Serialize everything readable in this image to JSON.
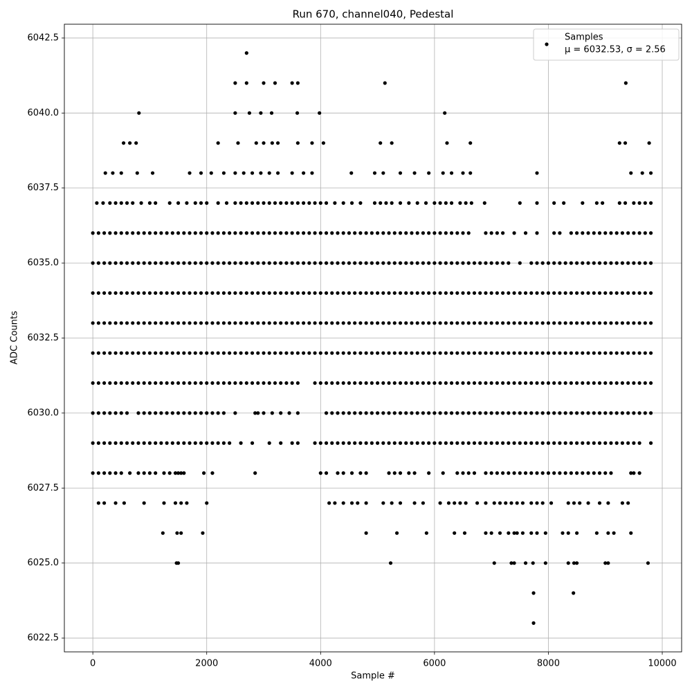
{
  "chart_data": {
    "type": "scatter",
    "title": "Run 670, channel040, Pedestal",
    "x_label": "Sample #",
    "y_label": "ADC Counts",
    "color": "#000000",
    "grid": true,
    "legend_position": "upper right",
    "legend": {
      "name": "Samples",
      "label": "μ = 6032.53, σ = 2.56"
    },
    "xlim": [
      -500,
      10340
    ],
    "ylim": [
      6022.04,
      6042.96
    ],
    "xticks": [
      0,
      2000,
      4000,
      6000,
      8000,
      10000
    ],
    "yticks": [
      6022.5,
      {
        "value": 6025,
        "label": "6025.0"
      },
      6027.5,
      {
        "value": 6030,
        "label": "6030.0"
      },
      6032.5,
      {
        "value": 6035,
        "label": "6035.0"
      },
      6037.5,
      {
        "value": 6040,
        "label": "6040.0"
      },
      6042.5
    ],
    "levels": [
      {
        "value": 6042,
        "x": [
          2700
        ]
      },
      {
        "value": 6041,
        "x": [
          2500,
          2700,
          3000,
          3200,
          3500,
          3600,
          5130,
          9360
        ]
      },
      {
        "value": 6040,
        "x": [
          810,
          2500,
          2750,
          2950,
          3140,
          3590,
          3980,
          6180
        ]
      },
      {
        "value": 6039,
        "x": [
          540,
          650,
          760,
          2200,
          2550,
          2870,
          3000,
          3150,
          3250,
          3600,
          3850,
          4050,
          5050,
          5250,
          6220,
          6630,
          9250,
          9350,
          9770
        ]
      },
      {
        "value": 6038,
        "x": [
          220,
          350,
          500,
          780,
          1050,
          1700,
          1900,
          2080,
          2300,
          2500,
          2650,
          2800,
          2950,
          3100,
          3250,
          3500,
          3700,
          3850,
          4540,
          4950,
          5100,
          5400,
          5650,
          5900,
          6150,
          6300,
          6500,
          6630,
          7800,
          9450,
          9650,
          9800
        ]
      },
      {
        "value": 6037,
        "x": [
          70,
          180,
          300,
          400,
          500,
          600,
          700,
          850,
          1000,
          1100,
          1350,
          1500,
          1650,
          1800,
          1900,
          2000,
          2200,
          2350,
          2500,
          2600,
          2700,
          2800,
          2900,
          3000,
          3100,
          3200,
          3300,
          3400,
          3500,
          3600,
          3700,
          3800,
          3900,
          4000,
          4100,
          4250,
          4400,
          4550,
          4700,
          4950,
          5050,
          5150,
          5250,
          5400,
          5550,
          5700,
          5850,
          6000,
          6100,
          6200,
          6300,
          6450,
          6550,
          6650,
          6880,
          7500,
          7800,
          8100,
          8270,
          8600,
          8850,
          8950,
          9250,
          9350,
          9500,
          9600,
          9700,
          9800
        ]
      },
      {
        "value": 6036,
        "x": [
          0,
          100,
          200,
          300,
          400,
          500,
          600,
          700,
          800,
          900,
          1000,
          1100,
          1200,
          1300,
          1400,
          1500,
          1600,
          1700,
          1800,
          1900,
          2000,
          2100,
          2200,
          2300,
          2400,
          2500,
          2600,
          2700,
          2800,
          2900,
          3000,
          3100,
          3200,
          3300,
          3400,
          3500,
          3600,
          3700,
          3800,
          3900,
          4000,
          4100,
          4200,
          4300,
          4400,
          4500,
          4600,
          4700,
          4800,
          4900,
          5000,
          5100,
          5200,
          5300,
          5400,
          5500,
          5600,
          5700,
          5800,
          5900,
          6000,
          6100,
          6200,
          6300,
          6400,
          6500,
          6600,
          6900,
          7000,
          7100,
          7200,
          7400,
          7600,
          7800,
          8100,
          8200,
          8400,
          8500,
          8600,
          8700,
          8800,
          8900,
          9000,
          9100,
          9200,
          9300,
          9400,
          9500,
          9600,
          9700,
          9800
        ]
      },
      {
        "value": 6035,
        "x": [
          0,
          100,
          200,
          300,
          400,
          500,
          600,
          700,
          800,
          900,
          1000,
          1100,
          1200,
          1300,
          1400,
          1500,
          1600,
          1700,
          1800,
          1900,
          2000,
          2100,
          2200,
          2300,
          2400,
          2500,
          2600,
          2700,
          2800,
          2900,
          3000,
          3100,
          3200,
          3300,
          3400,
          3500,
          3600,
          3700,
          3800,
          3900,
          4000,
          4100,
          4200,
          4300,
          4400,
          4500,
          4600,
          4700,
          4800,
          4900,
          5000,
          5100,
          5200,
          5300,
          5400,
          5500,
          5600,
          5700,
          5800,
          5900,
          6000,
          6100,
          6200,
          6300,
          6400,
          6500,
          6600,
          6700,
          6800,
          6900,
          7000,
          7100,
          7200,
          7300,
          7500,
          7700,
          7800,
          7900,
          8000,
          8100,
          8200,
          8300,
          8400,
          8500,
          8600,
          8700,
          8800,
          8900,
          9000,
          9100,
          9200,
          9300,
          9400,
          9500,
          9600,
          9700,
          9800
        ]
      },
      {
        "value": 6034,
        "x": [
          0,
          100,
          200,
          300,
          400,
          500,
          600,
          700,
          800,
          900,
          1000,
          1100,
          1200,
          1300,
          1400,
          1500,
          1600,
          1700,
          1800,
          1900,
          2000,
          2100,
          2200,
          2300,
          2400,
          2500,
          2600,
          2700,
          2800,
          2900,
          3000,
          3100,
          3200,
          3300,
          3400,
          3500,
          3600,
          3700,
          3800,
          3900,
          4000,
          4100,
          4200,
          4300,
          4400,
          4500,
          4600,
          4700,
          4800,
          4900,
          5000,
          5100,
          5200,
          5300,
          5400,
          5500,
          5600,
          5700,
          5800,
          5900,
          6000,
          6100,
          6200,
          6300,
          6400,
          6500,
          6600,
          6700,
          6800,
          6900,
          7000,
          7100,
          7200,
          7300,
          7400,
          7500,
          7600,
          7700,
          7800,
          7900,
          8000,
          8100,
          8200,
          8300,
          8400,
          8500,
          8600,
          8700,
          8800,
          8900,
          9000,
          9100,
          9200,
          9300,
          9400,
          9500,
          9600,
          9700,
          9800
        ]
      },
      {
        "value": 6033,
        "x": [
          0,
          100,
          200,
          300,
          400,
          500,
          600,
          700,
          800,
          900,
          1000,
          1100,
          1200,
          1300,
          1400,
          1500,
          1600,
          1700,
          1800,
          1900,
          2000,
          2100,
          2200,
          2300,
          2400,
          2500,
          2600,
          2700,
          2800,
          2900,
          3000,
          3100,
          3200,
          3300,
          3400,
          3500,
          3600,
          3700,
          3800,
          3900,
          4000,
          4100,
          4200,
          4300,
          4400,
          4500,
          4600,
          4700,
          4800,
          4900,
          5000,
          5100,
          5200,
          5300,
          5400,
          5500,
          5600,
          5700,
          5800,
          5900,
          6000,
          6100,
          6200,
          6300,
          6400,
          6500,
          6600,
          6700,
          6800,
          6900,
          7000,
          7100,
          7200,
          7300,
          7400,
          7500,
          7600,
          7700,
          7800,
          7900,
          8000,
          8100,
          8200,
          8300,
          8400,
          8500,
          8600,
          8700,
          8800,
          8900,
          9000,
          9100,
          9200,
          9300,
          9400,
          9500,
          9600,
          9700,
          9800
        ]
      },
      {
        "value": 6032,
        "x": [
          0,
          100,
          200,
          300,
          400,
          500,
          600,
          700,
          800,
          900,
          1000,
          1100,
          1200,
          1300,
          1400,
          1500,
          1600,
          1700,
          1800,
          1900,
          2000,
          2100,
          2200,
          2300,
          2400,
          2500,
          2600,
          2700,
          2800,
          2900,
          3000,
          3100,
          3200,
          3300,
          3400,
          3500,
          3600,
          3700,
          3800,
          3900,
          4000,
          4100,
          4200,
          4300,
          4400,
          4500,
          4600,
          4700,
          4800,
          4900,
          5000,
          5100,
          5200,
          5300,
          5400,
          5500,
          5600,
          5700,
          5800,
          5900,
          6000,
          6100,
          6200,
          6300,
          6400,
          6500,
          6600,
          6700,
          6800,
          6900,
          7000,
          7100,
          7200,
          7300,
          7400,
          7500,
          7600,
          7700,
          7800,
          7900,
          8000,
          8100,
          8200,
          8300,
          8400,
          8500,
          8600,
          8700,
          8800,
          8900,
          9000,
          9100,
          9200,
          9300,
          9400,
          9500,
          9600,
          9700,
          9800
        ]
      },
      {
        "value": 6031,
        "x": [
          0,
          100,
          200,
          300,
          400,
          500,
          600,
          700,
          800,
          900,
          1000,
          1100,
          1200,
          1300,
          1400,
          1500,
          1600,
          1700,
          1800,
          1900,
          2000,
          2100,
          2200,
          2300,
          2400,
          2500,
          2600,
          2700,
          2800,
          2900,
          3000,
          3100,
          3200,
          3300,
          3400,
          3500,
          3600,
          3900,
          4000,
          4100,
          4200,
          4300,
          4400,
          4500,
          4600,
          4700,
          4800,
          4900,
          5000,
          5100,
          5200,
          5300,
          5400,
          5500,
          5600,
          5700,
          5800,
          5900,
          6000,
          6100,
          6200,
          6300,
          6400,
          6500,
          6600,
          6700,
          6800,
          6900,
          7000,
          7100,
          7200,
          7300,
          7400,
          7500,
          7600,
          7700,
          7800,
          7900,
          8000,
          8100,
          8200,
          8300,
          8400,
          8500,
          8600,
          8700,
          8800,
          8900,
          9000,
          9100,
          9200,
          9300,
          9400,
          9500,
          9600,
          9700,
          9800
        ]
      },
      {
        "value": 6030,
        "x": [
          0,
          100,
          200,
          300,
          400,
          500,
          600,
          800,
          900,
          1000,
          1100,
          1200,
          1300,
          1400,
          1500,
          1600,
          1700,
          1800,
          1900,
          2000,
          2100,
          2200,
          2300,
          2500,
          2850,
          2900,
          3000,
          3150,
          3300,
          3450,
          3600,
          4100,
          4200,
          4300,
          4400,
          4500,
          4600,
          4700,
          4800,
          4900,
          5000,
          5100,
          5200,
          5300,
          5400,
          5500,
          5600,
          5700,
          5800,
          5900,
          6000,
          6100,
          6200,
          6300,
          6400,
          6500,
          6600,
          6700,
          6800,
          6900,
          7000,
          7100,
          7200,
          7300,
          7400,
          7500,
          7600,
          7700,
          7800,
          7900,
          8000,
          8100,
          8200,
          8300,
          8400,
          8500,
          8600,
          8700,
          8800,
          8900,
          9000,
          9100,
          9200,
          9300,
          9400,
          9500,
          9600,
          9700,
          9800
        ]
      },
      {
        "value": 6029,
        "x": [
          0,
          100,
          200,
          300,
          400,
          500,
          600,
          700,
          800,
          900,
          1000,
          1100,
          1200,
          1300,
          1400,
          1500,
          1600,
          1700,
          1800,
          1900,
          2000,
          2100,
          2200,
          2300,
          2400,
          2600,
          2800,
          3100,
          3300,
          3500,
          3600,
          3900,
          4000,
          4100,
          4200,
          4300,
          4400,
          4500,
          4600,
          4700,
          4800,
          4900,
          5000,
          5100,
          5200,
          5300,
          5400,
          5500,
          5600,
          5700,
          5800,
          5900,
          6000,
          6100,
          6200,
          6300,
          6400,
          6500,
          6600,
          6700,
          6800,
          6900,
          7000,
          7100,
          7200,
          7300,
          7400,
          7500,
          7600,
          7700,
          7800,
          7900,
          8000,
          8100,
          8200,
          8300,
          8400,
          8500,
          8600,
          8700,
          8800,
          8900,
          9000,
          9100,
          9200,
          9300,
          9400,
          9500,
          9600,
          9800
        ]
      },
      {
        "value": 6028,
        "x": [
          0,
          100,
          200,
          300,
          400,
          500,
          650,
          800,
          900,
          1000,
          1100,
          1250,
          1350,
          1450,
          1500,
          1550,
          1600,
          1950,
          2100,
          2850,
          4000,
          4100,
          4300,
          4400,
          4550,
          4700,
          4800,
          5200,
          5300,
          5400,
          5550,
          5650,
          5900,
          6150,
          6400,
          6500,
          6600,
          6700,
          6900,
          7000,
          7100,
          7200,
          7300,
          7400,
          7500,
          7600,
          7700,
          7800,
          7900,
          8000,
          8100,
          8200,
          8300,
          8400,
          8500,
          8600,
          8700,
          8800,
          8900,
          9000,
          9100,
          9450,
          9500,
          9600
        ]
      },
      {
        "value": 6027,
        "x": [
          100,
          200,
          400,
          550,
          900,
          1250,
          1450,
          1550,
          1650,
          2000,
          4150,
          4250,
          4400,
          4550,
          4650,
          4800,
          5100,
          5250,
          5400,
          5650,
          5800,
          6100,
          6250,
          6350,
          6450,
          6550,
          6750,
          6900,
          7050,
          7150,
          7250,
          7350,
          7450,
          7550,
          7700,
          7800,
          7900,
          8050,
          8350,
          8450,
          8550,
          8700,
          8900,
          9050,
          9300,
          9400
        ]
      },
      {
        "value": 6026,
        "x": [
          1230,
          1480,
          1550,
          1930,
          4800,
          5340,
          5860,
          6350,
          6530,
          6900,
          7000,
          7150,
          7300,
          7400,
          7450,
          7550,
          7700,
          7800,
          7950,
          8250,
          8350,
          8500,
          8850,
          9050,
          9150,
          9450
        ]
      },
      {
        "value": 6025,
        "x": [
          1470,
          1500,
          5230,
          7050,
          7350,
          7400,
          7600,
          7730,
          7950,
          8350,
          8450,
          8500,
          9000,
          9050,
          9750
        ]
      },
      {
        "value": 6024,
        "x": [
          7740,
          8440
        ]
      },
      {
        "value": 6023,
        "x": [
          7740
        ]
      }
    ]
  }
}
